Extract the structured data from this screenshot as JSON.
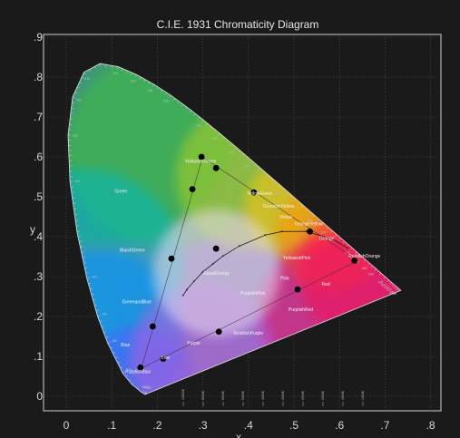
{
  "chart_data": {
    "type": "scatter",
    "title": "C.I.E. 1931 Chromaticity Diagram",
    "xlabel": "x",
    "ylabel": "y",
    "xlim": [
      -0.05,
      0.8
    ],
    "ylim": [
      -0.04,
      0.92
    ],
    "x_ticks": [
      "0",
      ".1",
      ".2",
      ".3",
      ".4",
      ".5",
      ".6",
      ".7",
      ".8"
    ],
    "y_ticks": [
      "0",
      ".1",
      ".2",
      ".3",
      ".4",
      ".5",
      ".6",
      ".7",
      ".8",
      ".9"
    ],
    "grid": true,
    "spectral_locus": [
      [
        0.1741,
        0.005
      ],
      [
        0.173,
        0.0048
      ],
      [
        0.1666,
        0.0089
      ],
      [
        0.144,
        0.0297
      ],
      [
        0.1241,
        0.0578
      ],
      [
        0.0913,
        0.1327
      ],
      [
        0.0687,
        0.2007
      ],
      [
        0.0454,
        0.295
      ],
      [
        0.0235,
        0.4127
      ],
      [
        0.0082,
        0.5384
      ],
      [
        0.0039,
        0.6548
      ],
      [
        0.0139,
        0.7502
      ],
      [
        0.0389,
        0.812
      ],
      [
        0.0743,
        0.8338
      ],
      [
        0.1142,
        0.8262
      ],
      [
        0.1547,
        0.8059
      ],
      [
        0.1929,
        0.7816
      ],
      [
        0.2296,
        0.7543
      ],
      [
        0.2658,
        0.7243
      ],
      [
        0.3016,
        0.6923
      ],
      [
        0.3373,
        0.6589
      ],
      [
        0.3731,
        0.6245
      ],
      [
        0.4087,
        0.5896
      ],
      [
        0.4441,
        0.5547
      ],
      [
        0.4788,
        0.5202
      ],
      [
        0.5125,
        0.4866
      ],
      [
        0.5448,
        0.4544
      ],
      [
        0.5752,
        0.4242
      ],
      [
        0.6029,
        0.3965
      ],
      [
        0.627,
        0.3725
      ],
      [
        0.6482,
        0.3514
      ],
      [
        0.6658,
        0.334
      ],
      [
        0.6801,
        0.3197
      ],
      [
        0.6915,
        0.3083
      ],
      [
        0.7006,
        0.2993
      ],
      [
        0.7079,
        0.292
      ],
      [
        0.714,
        0.2859
      ],
      [
        0.719,
        0.2809
      ],
      [
        0.723,
        0.277
      ],
      [
        0.726,
        0.274
      ],
      [
        0.7283,
        0.2717
      ],
      [
        0.73,
        0.27
      ],
      [
        0.7347,
        0.2653
      ]
    ],
    "triangle": [
      [
        0.2995,
        0.5995
      ],
      [
        0.64,
        0.34
      ],
      [
        0.165,
        0.07
      ]
    ],
    "planckian_locus": [
      [
        0.2565,
        0.2528
      ],
      [
        0.2647,
        0.2672
      ],
      [
        0.2806,
        0.2883
      ],
      [
        0.2998,
        0.3118
      ],
      [
        0.3221,
        0.3318
      ],
      [
        0.3447,
        0.3518
      ],
      [
        0.3804,
        0.3768
      ],
      [
        0.4369,
        0.4041
      ],
      [
        0.4735,
        0.4129
      ],
      [
        0.5267,
        0.4133
      ],
      [
        0.5857,
        0.3931
      ],
      [
        0.618,
        0.3715
      ]
    ],
    "points": [
      [
        0.297,
        0.6
      ],
      [
        0.329,
        0.572
      ],
      [
        0.277,
        0.519
      ],
      [
        0.412,
        0.511
      ],
      [
        0.535,
        0.413
      ],
      [
        0.231,
        0.345
      ],
      [
        0.329,
        0.37
      ],
      [
        0.633,
        0.34
      ],
      [
        0.508,
        0.268
      ],
      [
        0.19,
        0.175
      ],
      [
        0.335,
        0.162
      ],
      [
        0.213,
        0.094
      ],
      [
        0.163,
        0.072
      ]
    ],
    "wavelengths": [
      "380",
      "460",
      "470",
      "475",
      "480",
      "485",
      "490",
      "495",
      "500",
      "505",
      "510",
      "515",
      "520",
      "525",
      "530",
      "535",
      "540",
      "545",
      "550",
      "555",
      "560",
      "565",
      "570",
      "575",
      "580",
      "585",
      "590",
      "595",
      "600",
      "610",
      "620",
      "630",
      "640",
      "700"
    ],
    "temperature_labels": [
      "10000K",
      "8000K",
      "6500K",
      "5000K",
      "4000K",
      "3000K",
      "2500K",
      "2000K",
      "1500K",
      "1000K"
    ],
    "region_labels": [
      {
        "text": "Green",
        "x": 0.12,
        "y": 0.51
      },
      {
        "text": "YellowishGreen",
        "x": 0.295,
        "y": 0.585
      },
      {
        "text": "YellowGreen",
        "x": 0.425,
        "y": 0.505
      },
      {
        "text": "GreenishYellow",
        "x": 0.466,
        "y": 0.473
      },
      {
        "text": "Yellow",
        "x": 0.482,
        "y": 0.445
      },
      {
        "text": "OrangeYellow",
        "x": 0.532,
        "y": 0.428
      },
      {
        "text": "Orange",
        "x": 0.572,
        "y": 0.392
      },
      {
        "text": "BluishGreen",
        "x": 0.145,
        "y": 0.363
      },
      {
        "text": "YellowishPink",
        "x": 0.506,
        "y": 0.343
      },
      {
        "text": "ReddishOrange",
        "x": 0.655,
        "y": 0.348
      },
      {
        "text": "EqualEnergy",
        "x": 0.33,
        "y": 0.305
      },
      {
        "text": "Pink",
        "x": 0.48,
        "y": 0.292
      },
      {
        "text": "Red",
        "x": 0.57,
        "y": 0.277
      },
      {
        "text": "PurplishPink",
        "x": 0.41,
        "y": 0.255
      },
      {
        "text": "GreenandBlue",
        "x": 0.155,
        "y": 0.233
      },
      {
        "text": "PurplishRed",
        "x": 0.515,
        "y": 0.214
      },
      {
        "text": "ReddishPurple",
        "x": 0.4,
        "y": 0.155
      },
      {
        "text": "Purple",
        "x": 0.28,
        "y": 0.13
      },
      {
        "text": "Blue",
        "x": 0.13,
        "y": 0.125
      },
      {
        "text": "PurplishBlue",
        "x": 0.158,
        "y": 0.058
      },
      {
        "text": "Blue",
        "x": 0.218,
        "y": 0.093
      }
    ],
    "colors": {
      "background": "#1a1a1a",
      "frame": "#d0d0d0",
      "grid": "#555555",
      "red_primary": "#f0006a",
      "green_primary": "#009a4a",
      "blue_primary": "#6a00c8",
      "white": "#e8d8f0",
      "points": "#000000"
    }
  }
}
